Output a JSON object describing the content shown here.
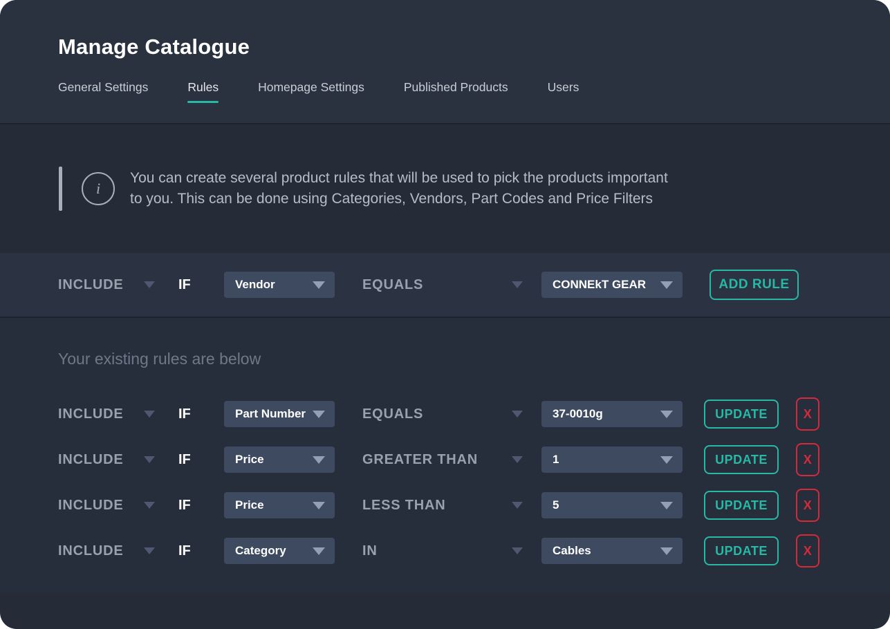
{
  "title": "Manage Catalogue",
  "tabs": [
    {
      "label": "General Settings",
      "active": false
    },
    {
      "label": "Rules",
      "active": true
    },
    {
      "label": "Homepage Settings",
      "active": false
    },
    {
      "label": "Published Products",
      "active": false
    },
    {
      "label": "Users",
      "active": false
    }
  ],
  "info": {
    "line1": "You can create several product rules that will be used to pick the products important",
    "line2": "to you. This can be done using Categories, Vendors, Part Codes and Price Filters"
  },
  "builder": {
    "action": "INCLUDE",
    "if_label": "IF",
    "field": "Vendor",
    "operator": "EQUALS",
    "value": "CONNEkT GEAR",
    "add_button": "ADD RULE"
  },
  "existing": {
    "heading": "Your existing rules are below",
    "update_label": "UPDATE",
    "delete_label": "X",
    "rules": [
      {
        "action": "INCLUDE",
        "if_label": "IF",
        "field": "Part Number",
        "operator": "EQUALS",
        "value": "37-0010g"
      },
      {
        "action": "INCLUDE",
        "if_label": "IF",
        "field": "Price",
        "operator": "GREATER THAN",
        "value": "1"
      },
      {
        "action": "INCLUDE",
        "if_label": "IF",
        "field": "Price",
        "operator": "LESS THAN",
        "value": "5"
      },
      {
        "action": "INCLUDE",
        "if_label": "IF",
        "field": "Category",
        "operator": "IN",
        "value": "Cables"
      }
    ]
  },
  "colors": {
    "accent_teal": "#29b8a6",
    "danger_red": "#d6293a",
    "select_bg": "#3e4a60",
    "card_bg": "#252c38"
  }
}
